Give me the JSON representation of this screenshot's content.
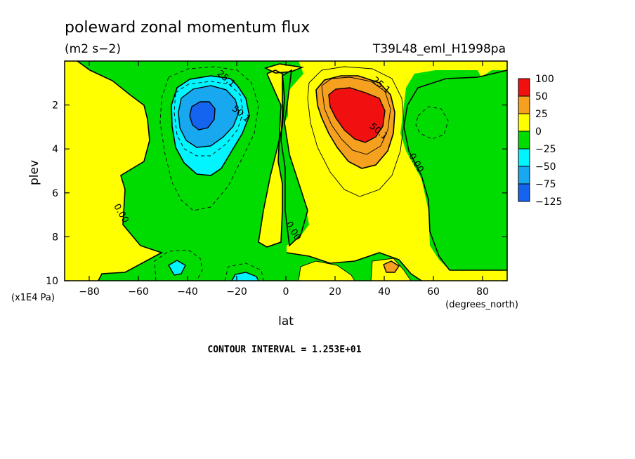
{
  "title": "poleward zonal momentum flux",
  "units": "(m2 s−2)",
  "dataset_label": "T39L48_eml_H1998pa",
  "contour_interval_label": "CONTOUR INTERVAL = 1.253E+01",
  "colors": {
    "red": "#f01010",
    "orange": "#f5a01e",
    "yellow": "#ffff00",
    "green": "#00dc00",
    "cyan": "#00f5ff",
    "sky": "#18a8f0",
    "blue": "#1464f0"
  },
  "chart_data": {
    "type": "heatmap",
    "subtype": "filled-contour",
    "title": "poleward zonal momentum flux",
    "units": "(m2 s−2)",
    "xlabel": "lat",
    "x_units": "(degrees_north)",
    "ylabel": "plev",
    "y_units": "(x1E4 Pa)",
    "xlim": [
      -90,
      90
    ],
    "ylim": [
      10,
      0
    ],
    "x_ticks": [
      -80,
      -60,
      -40,
      -20,
      0,
      20,
      40,
      60,
      80
    ],
    "y_ticks": [
      2,
      4,
      6,
      8,
      10
    ],
    "y_inverted": true,
    "contour_interval": 12.53,
    "legend_position": "right",
    "colorbar_levels": [
      "100",
      "50",
      "25",
      "0",
      "−25",
      "−50",
      "−75",
      "−125"
    ],
    "colorbar_bands": [
      {
        "range": [
          50,
          100
        ],
        "color": "red"
      },
      {
        "range": [
          25,
          50
        ],
        "color": "orange"
      },
      {
        "range": [
          0,
          25
        ],
        "color": "yellow"
      },
      {
        "range": [
          -25,
          0
        ],
        "color": "green"
      },
      {
        "range": [
          -50,
          -25
        ],
        "color": "cyan"
      },
      {
        "range": [
          -75,
          -50
        ],
        "color": "sky"
      },
      {
        "range": [
          -125,
          -75
        ],
        "color": "blue"
      }
    ],
    "contour_labels": [
      {
        "text": "25.1",
        "lat": -25,
        "plev": 0.9
      },
      {
        "text": "50.1",
        "lat": -19,
        "plev": 2.5
      },
      {
        "text": "25.1",
        "lat": 38,
        "plev": 1.2
      },
      {
        "text": "50.1",
        "lat": 37,
        "plev": 3.3
      },
      {
        "text": "0.00",
        "lat": -68,
        "plev": 7.0
      },
      {
        "text": "0.00",
        "lat": 2,
        "plev": 7.8
      },
      {
        "text": "0.00",
        "lat": 52,
        "plev": 4.7
      }
    ],
    "features": [
      {
        "kind": "minimum",
        "lat": -33,
        "plev": 2.7,
        "value_range": [
          -125,
          -75
        ]
      },
      {
        "kind": "maximum",
        "lat": 30,
        "plev": 2.8,
        "value_range": [
          50,
          100
        ]
      }
    ]
  }
}
